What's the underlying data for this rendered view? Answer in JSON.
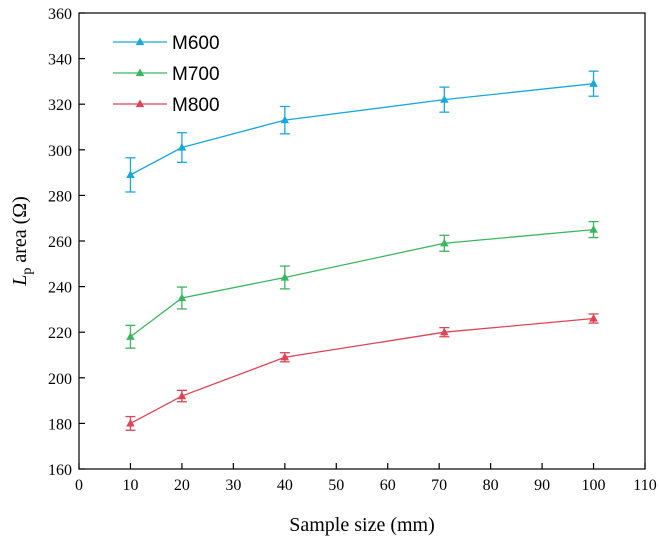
{
  "chart_data": {
    "type": "line",
    "xlabel": "Sample size (mm)",
    "ylabel": {
      "italic": "L",
      "subscript": "p",
      "rest": " area (Ω)"
    },
    "xlim": [
      0,
      110
    ],
    "ylim": [
      160,
      360
    ],
    "xticks": [
      0,
      10,
      20,
      30,
      40,
      50,
      60,
      70,
      80,
      90,
      100,
      110
    ],
    "yticks": [
      160,
      180,
      200,
      220,
      240,
      260,
      280,
      300,
      320,
      340,
      360
    ],
    "grid": false,
    "legend_position": "top-left",
    "x": [
      10,
      20,
      40,
      71,
      100
    ],
    "series": [
      {
        "name": "M600",
        "color": "#1aa7de",
        "marker": "triangle",
        "values": [
          289,
          301,
          313,
          322,
          329
        ],
        "error": [
          7.5,
          6.5,
          6.0,
          5.5,
          5.5
        ]
      },
      {
        "name": "M700",
        "color": "#3cb561",
        "marker": "triangle",
        "values": [
          218,
          235,
          244,
          259,
          265
        ],
        "error": [
          5.0,
          4.8,
          5.0,
          3.5,
          3.5
        ]
      },
      {
        "name": "M800",
        "color": "#dd4455",
        "marker": "triangle",
        "values": [
          180,
          192,
          209,
          220,
          226
        ],
        "error": [
          3.0,
          2.5,
          2.0,
          2.0,
          2.0
        ]
      }
    ]
  }
}
